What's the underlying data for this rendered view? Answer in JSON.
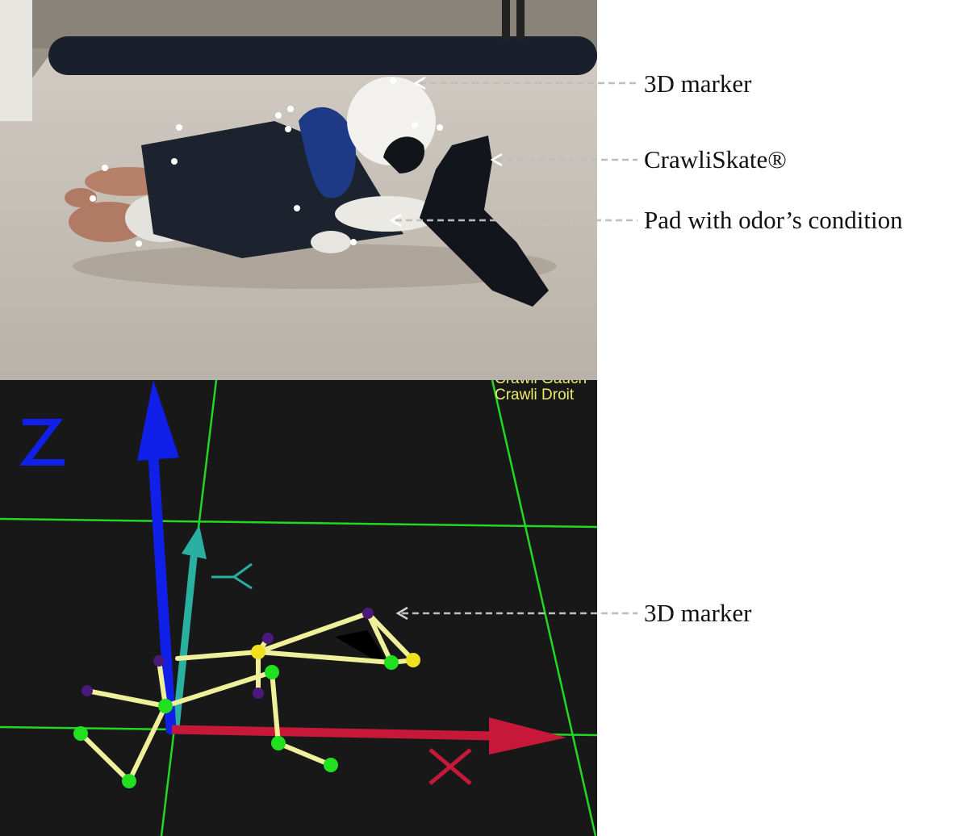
{
  "labels": {
    "marker_top": "3D marker",
    "skate": "CrawliSkate®",
    "pad": "Pad with odor’s condition",
    "marker_bottom": "3D marker"
  },
  "viewer": {
    "legend_partial": "Crawli Gauch",
    "legend_right": "Crawli Droit",
    "axis_z": "Z",
    "axis_y": "Y",
    "axis_x": "X"
  },
  "colors": {
    "axis_z": "#1020e8",
    "axis_y": "#2ab0a0",
    "axis_x": "#c8183a",
    "grid": "#22d822",
    "bones": "#f0f09a",
    "joint_green": "#20e020",
    "joint_purple": "#4a1a7a",
    "joint_yellow": "#f0e020"
  }
}
